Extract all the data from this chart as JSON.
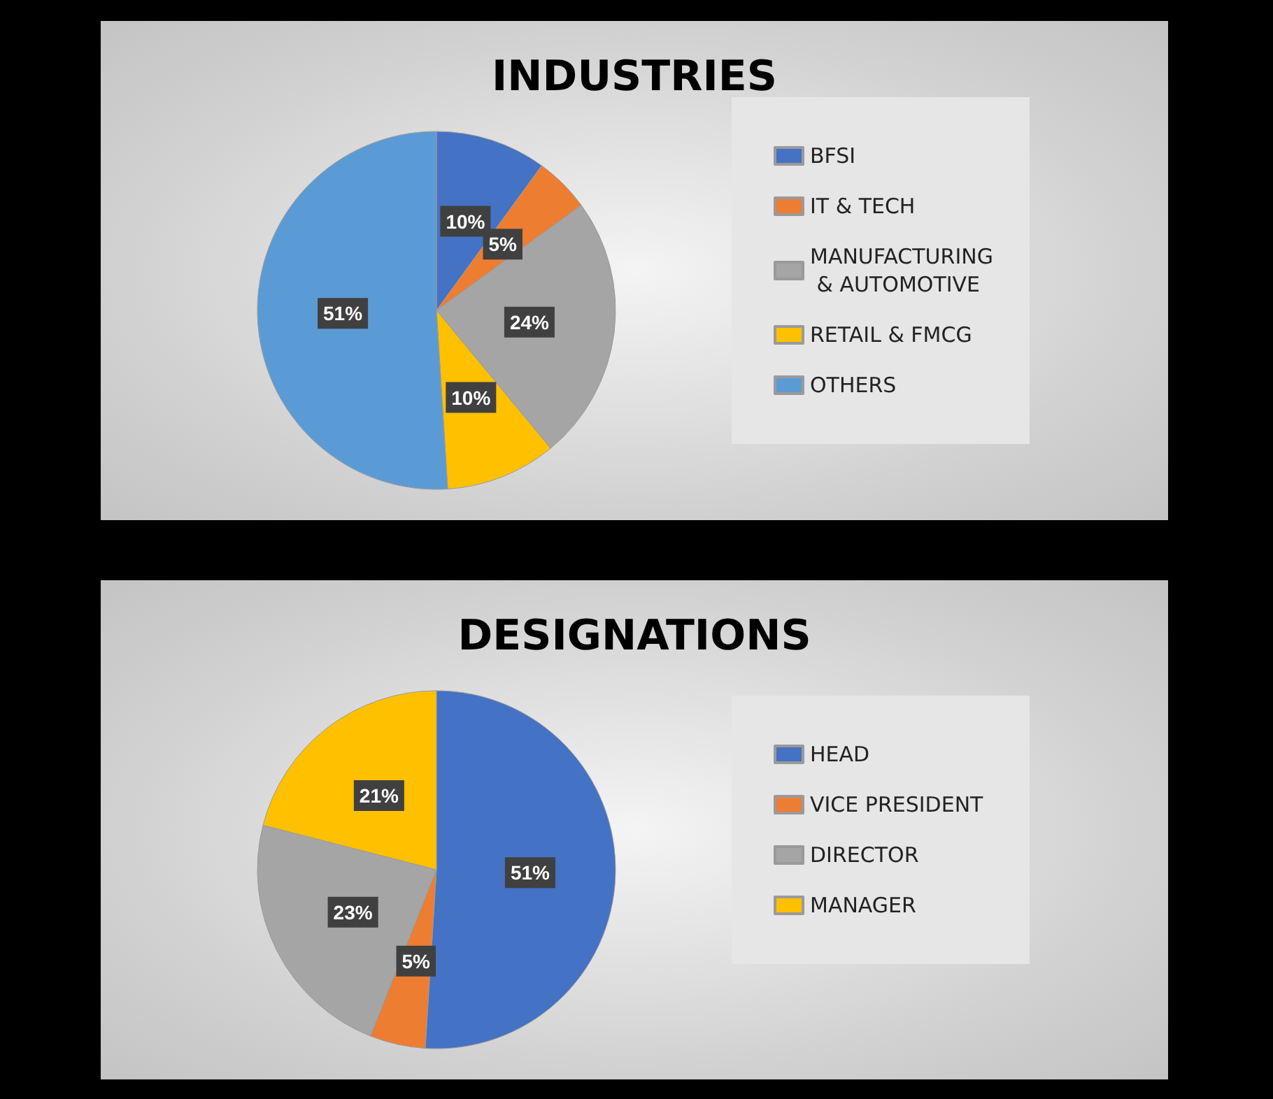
{
  "chart_data": [
    {
      "type": "pie",
      "title": "INDUSTRIES",
      "categories": [
        "BFSI",
        "IT & TECH",
        "MANUFACTURING & AUTOMOTIVE",
        "RETAIL & FMCG",
        "OTHERS"
      ],
      "values": [
        10,
        5,
        24,
        10,
        51
      ],
      "value_labels": [
        "10%",
        "5%",
        "24%",
        "10%",
        "51%"
      ],
      "colors": [
        "#4472c4",
        "#ed7d31",
        "#a5a5a5",
        "#ffc000",
        "#5b9bd5"
      ],
      "legend": "right"
    },
    {
      "type": "pie",
      "title": "DESIGNATIONS",
      "categories": [
        "HEAD",
        "VICE PRESIDENT",
        "DIRECTOR",
        "MANAGER"
      ],
      "values": [
        51,
        5,
        23,
        21
      ],
      "value_labels": [
        "51%",
        "5%",
        "23%",
        "21%"
      ],
      "colors": [
        "#4472c4",
        "#ed7d31",
        "#a5a5a5",
        "#ffc000"
      ],
      "legend": "right"
    }
  ]
}
